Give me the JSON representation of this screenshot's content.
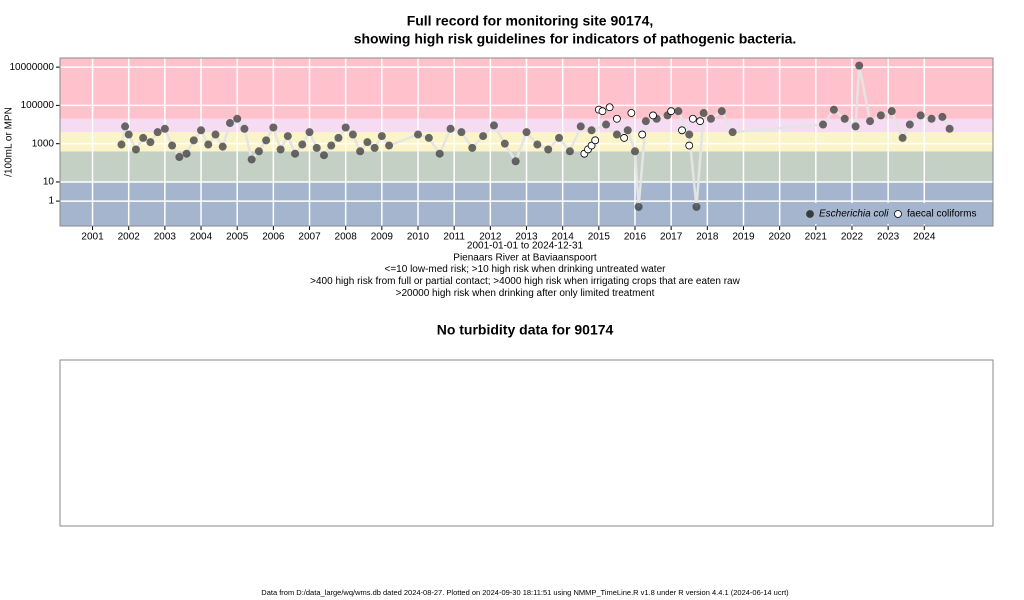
{
  "chart_data": [
    {
      "type": "scatter",
      "title": "Full record for monitoring site 90174,",
      "subtitle": "showing high risk guidelines for indicators of pathogenic bacteria.",
      "ylabel": "/100mL or MPN",
      "notes": [
        "2001-01-01 to 2024-12-31",
        "Pienaars River at Baviaanspoort",
        "<=10 low-med risk; >10 high risk when drinking untreated water",
        ">400 high risk from full or partial contact; >4000 high risk when irrigating crops that are eaten raw",
        ">20000 high risk when drinking after only limited treatment"
      ],
      "log_y": true,
      "grid": true,
      "legend": "bottom-right",
      "xlim": [
        2000.1,
        2025.9
      ],
      "xticks": [
        2001,
        2002,
        2003,
        2004,
        2005,
        2006,
        2007,
        2008,
        2009,
        2010,
        2011,
        2012,
        2013,
        2014,
        2015,
        2016,
        2017,
        2018,
        2019,
        2020,
        2021,
        2022,
        2023,
        2024
      ],
      "ylim": [
        0.05,
        30000000
      ],
      "yticks": [
        1,
        10,
        1000,
        100000,
        10000000
      ],
      "guidelines": [
        10,
        400,
        4000,
        20000
      ],
      "band_colors": [
        "#a5b5cd",
        "#c5d0c4",
        "#fbf4c8",
        "#f6dcf2",
        "#ffc2cc"
      ],
      "series": [
        {
          "name": "Escherichia coli",
          "italic": true,
          "color": "#3a3a3a",
          "line_color": "#e4e4e4",
          "filled": true,
          "x": [
            2001.8,
            2001.9,
            2002.0,
            2002.2,
            2002.4,
            2002.6,
            2002.8,
            2003.0,
            2003.2,
            2003.4,
            2003.6,
            2003.8,
            2004.0,
            2004.2,
            2004.4,
            2004.6,
            2004.8,
            2005.0,
            2005.2,
            2005.4,
            2005.6,
            2005.8,
            2006.0,
            2006.2,
            2006.4,
            2006.6,
            2006.8,
            2007.0,
            2007.2,
            2007.4,
            2007.6,
            2007.8,
            2008.0,
            2008.2,
            2008.4,
            2008.6,
            2008.8,
            2009.0,
            2009.2,
            2010.0,
            2010.3,
            2010.6,
            2010.9,
            2011.2,
            2011.5,
            2011.8,
            2012.1,
            2012.4,
            2012.7,
            2013.0,
            2013.3,
            2013.6,
            2013.9,
            2014.2,
            2014.5,
            2014.8,
            2015.2,
            2015.5,
            2015.8,
            2016.0,
            2016.1,
            2016.3,
            2016.6,
            2016.9,
            2017.2,
            2017.5,
            2017.7,
            2017.9,
            2018.1,
            2018.4,
            2018.7,
            2021.2,
            2021.5,
            2021.8,
            2022.1,
            2022.2,
            2022.5,
            2022.8,
            2023.1,
            2023.4,
            2023.6,
            2023.9,
            2024.2,
            2024.5,
            2024.7
          ],
          "values": [
            900,
            8000,
            3000,
            500,
            2000,
            1200,
            4000,
            6000,
            800,
            200,
            300,
            1500,
            5000,
            900,
            3000,
            700,
            12000,
            20000,
            6000,
            150,
            400,
            1500,
            7000,
            500,
            2500,
            300,
            900,
            4000,
            600,
            250,
            800,
            2000,
            7000,
            3000,
            400,
            1200,
            600,
            2500,
            800,
            3000,
            2000,
            300,
            6000,
            4000,
            600,
            2500,
            9000,
            1000,
            120,
            4000,
            900,
            500,
            2000,
            400,
            8000,
            5000,
            10000,
            3000,
            5000,
            400,
            0.5,
            15000,
            20000,
            30000,
            50000,
            3000,
            0.5,
            40000,
            20000,
            50000,
            4000,
            10000,
            60000,
            20000,
            8000,
            12000000,
            15000,
            30000,
            50000,
            2000,
            10000,
            30000,
            20000,
            25000,
            6000
          ]
        },
        {
          "name": "faecal coliforms",
          "italic": false,
          "color": "#000000",
          "filled": false,
          "x": [
            2014.6,
            2014.7,
            2014.8,
            2014.9,
            2015.0,
            2015.1,
            2015.3,
            2015.5,
            2015.7,
            2015.9,
            2016.2,
            2016.5,
            2017.0,
            2017.3,
            2017.5,
            2017.6,
            2017.8
          ],
          "values": [
            300,
            500,
            800,
            1500,
            60000,
            50000,
            80000,
            20000,
            2000,
            40000,
            3000,
            30000,
            50000,
            5000,
            800,
            20000,
            15000
          ]
        }
      ]
    },
    {
      "type": "empty",
      "title": "No turbidity data for 90174"
    }
  ],
  "footer": "Data from D:/data_large/wq/wms.db dated 2024-08-27. Plotted on 2024-09-30 18:11:51 using NMMP_TimeLine.R v1.8 under R version 4.4.1 (2024-06-14 ucrt)"
}
